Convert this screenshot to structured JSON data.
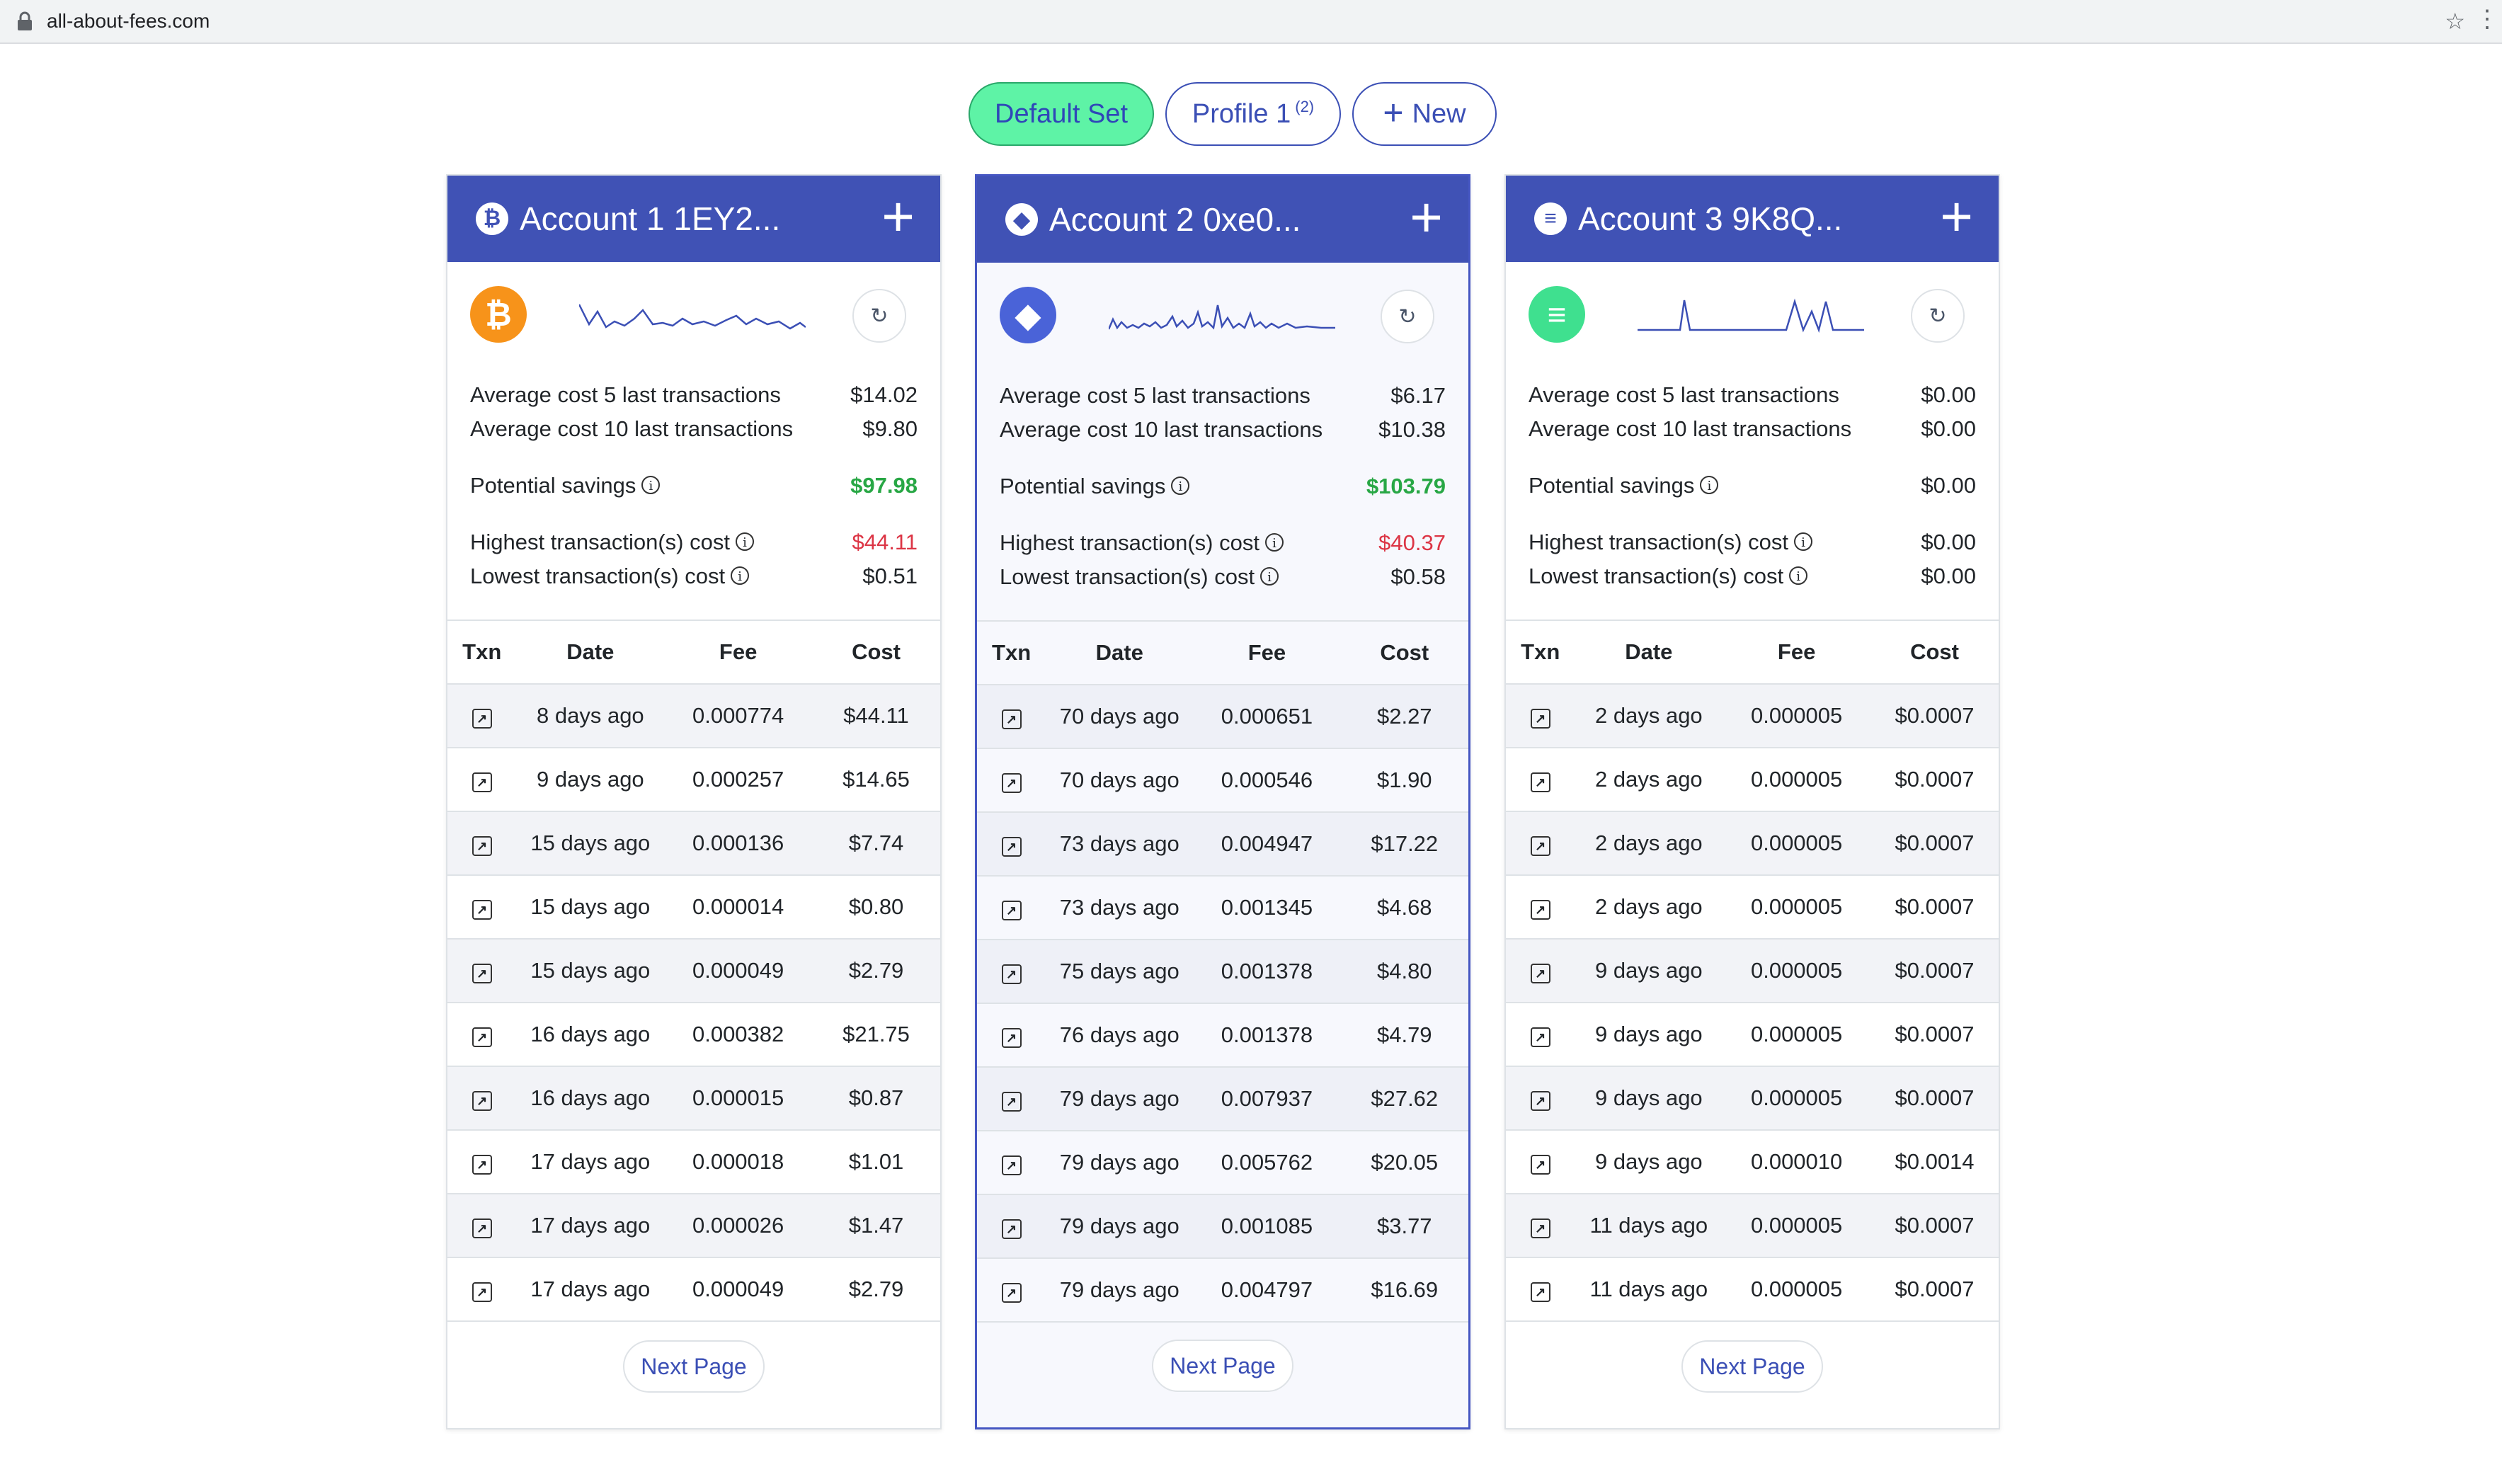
{
  "browser": {
    "url": "all-about-fees.com"
  },
  "profiles": [
    {
      "label": "Default Set",
      "active": true
    },
    {
      "label": "Profile 1",
      "count": "(2)",
      "active": false
    },
    {
      "label": "New",
      "active": false
    }
  ],
  "table_headers": [
    "Txn",
    "Date",
    "Fee",
    "Cost"
  ],
  "summary_labels": {
    "avg5": "Average cost 5 last transactions",
    "avg10": "Average cost 10 last transactions",
    "savings": "Potential savings",
    "highest": "Highest transaction(s) cost",
    "lowest": "Lowest transaction(s) cost"
  },
  "next_page_label": "Next Page",
  "accounts": [
    {
      "title": "Account 1  1EY2...",
      "header_icon": "bitcoin-icon",
      "coin_color": "#f7931a",
      "avg5": "$14.02",
      "avg10": "$9.80",
      "savings": "$97.98",
      "savings_color": "green",
      "highest": "$44.11",
      "highest_color": "red",
      "lowest": "$0.51",
      "transactions": [
        {
          "date": "8 days ago",
          "fee": "0.000774",
          "cost": "$44.11"
        },
        {
          "date": "9 days ago",
          "fee": "0.000257",
          "cost": "$14.65"
        },
        {
          "date": "15 days ago",
          "fee": "0.000136",
          "cost": "$7.74"
        },
        {
          "date": "15 days ago",
          "fee": "0.000014",
          "cost": "$0.80"
        },
        {
          "date": "15 days ago",
          "fee": "0.000049",
          "cost": "$2.79"
        },
        {
          "date": "16 days ago",
          "fee": "0.000382",
          "cost": "$21.75"
        },
        {
          "date": "16 days ago",
          "fee": "0.000015",
          "cost": "$0.87"
        },
        {
          "date": "17 days ago",
          "fee": "0.000018",
          "cost": "$1.01"
        },
        {
          "date": "17 days ago",
          "fee": "0.000026",
          "cost": "$1.47"
        },
        {
          "date": "17 days ago",
          "fee": "0.000049",
          "cost": "$2.79"
        }
      ]
    },
    {
      "title": "Account 2  0xe0...",
      "header_icon": "ethereum-icon",
      "coin_color": "#4a63d8",
      "avg5": "$6.17",
      "avg10": "$10.38",
      "savings": "$103.79",
      "savings_color": "green",
      "highest": "$40.37",
      "highest_color": "red",
      "lowest": "$0.58",
      "transactions": [
        {
          "date": "70 days ago",
          "fee": "0.000651",
          "cost": "$2.27"
        },
        {
          "date": "70 days ago",
          "fee": "0.000546",
          "cost": "$1.90"
        },
        {
          "date": "73 days ago",
          "fee": "0.004947",
          "cost": "$17.22"
        },
        {
          "date": "73 days ago",
          "fee": "0.001345",
          "cost": "$4.68"
        },
        {
          "date": "75 days ago",
          "fee": "0.001378",
          "cost": "$4.80"
        },
        {
          "date": "76 days ago",
          "fee": "0.001378",
          "cost": "$4.79"
        },
        {
          "date": "79 days ago",
          "fee": "0.007937",
          "cost": "$27.62"
        },
        {
          "date": "79 days ago",
          "fee": "0.005762",
          "cost": "$20.05"
        },
        {
          "date": "79 days ago",
          "fee": "0.001085",
          "cost": "$3.77"
        },
        {
          "date": "79 days ago",
          "fee": "0.004797",
          "cost": "$16.69"
        }
      ]
    },
    {
      "title": "Account 3  9K8Q...",
      "header_icon": "solana-icon",
      "coin_color": "#3fe08f",
      "avg5": "$0.00",
      "avg10": "$0.00",
      "savings": "$0.00",
      "savings_color": "",
      "highest": "$0.00",
      "highest_color": "",
      "lowest": "$0.00",
      "transactions": [
        {
          "date": "2 days ago",
          "fee": "0.000005",
          "cost": "$0.0007"
        },
        {
          "date": "2 days ago",
          "fee": "0.000005",
          "cost": "$0.0007"
        },
        {
          "date": "2 days ago",
          "fee": "0.000005",
          "cost": "$0.0007"
        },
        {
          "date": "2 days ago",
          "fee": "0.000005",
          "cost": "$0.0007"
        },
        {
          "date": "9 days ago",
          "fee": "0.000005",
          "cost": "$0.0007"
        },
        {
          "date": "9 days ago",
          "fee": "0.000005",
          "cost": "$0.0007"
        },
        {
          "date": "9 days ago",
          "fee": "0.000005",
          "cost": "$0.0007"
        },
        {
          "date": "9 days ago",
          "fee": "0.000010",
          "cost": "$0.0014"
        },
        {
          "date": "11 days ago",
          "fee": "0.000005",
          "cost": "$0.0007"
        },
        {
          "date": "11 days ago",
          "fee": "0.000005",
          "cost": "$0.0007"
        }
      ]
    }
  ]
}
